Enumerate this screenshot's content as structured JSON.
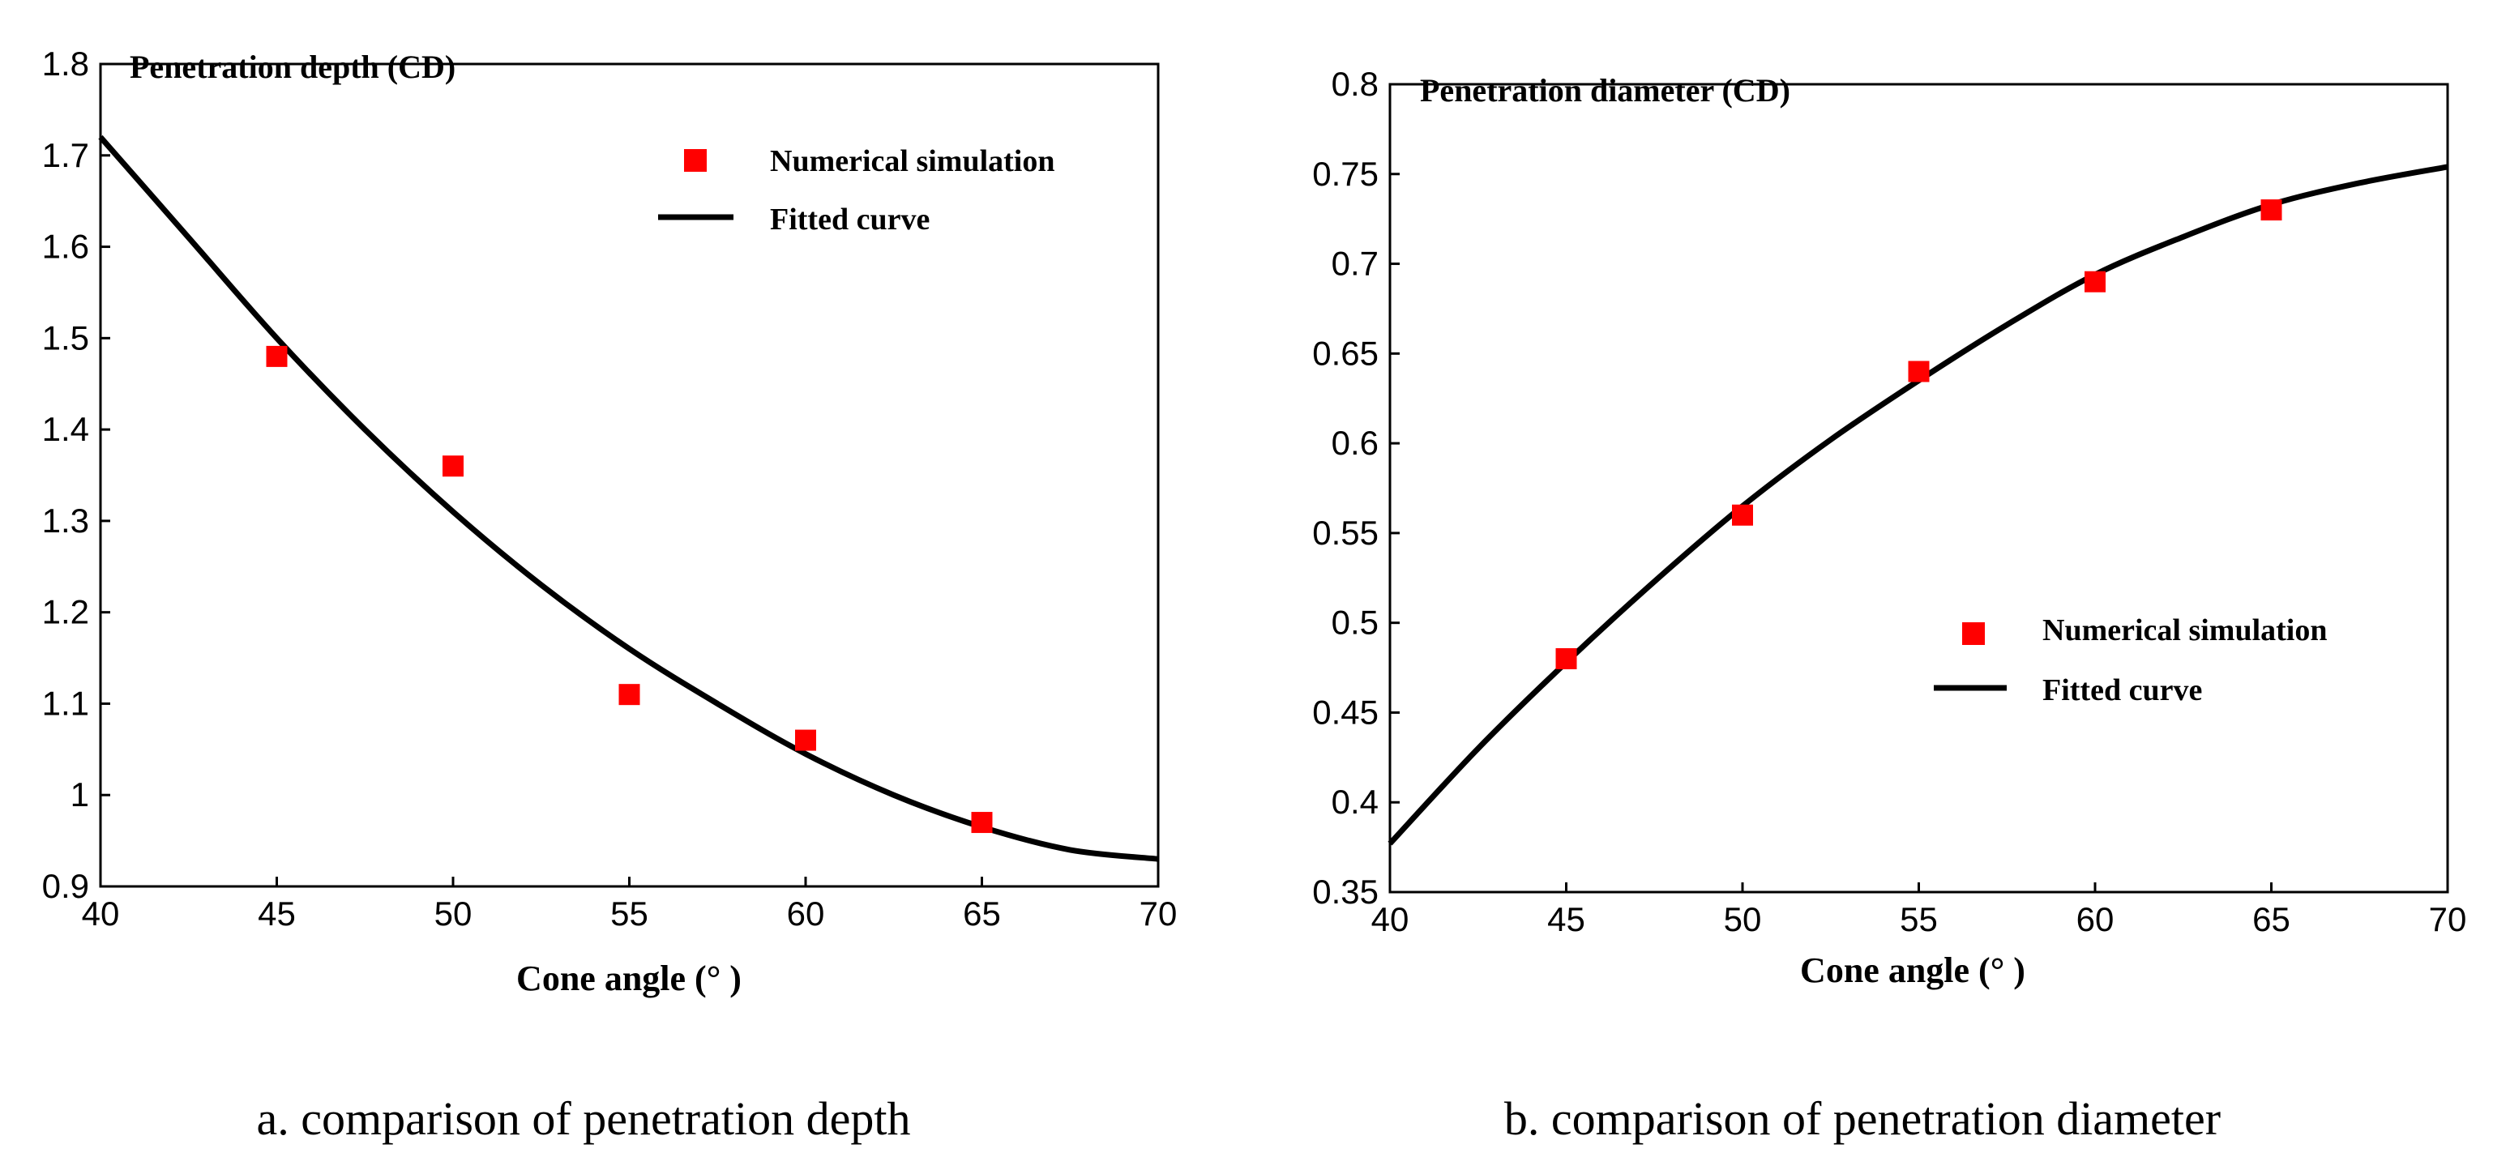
{
  "chart_data": [
    {
      "type": "scatter",
      "panel": "a",
      "title": "Penetration depth (CD)",
      "xlabel": "Cone angle (°  )",
      "ylabel": "",
      "xlim": [
        40,
        70
      ],
      "ylim": [
        0.9,
        1.8
      ],
      "xticks": [
        "40",
        "45",
        "50",
        "55",
        "60",
        "65",
        "70"
      ],
      "yticks": [
        "0.9",
        "1",
        "1.1",
        "1.2",
        "1.3",
        "1.4",
        "1.5",
        "1.6",
        "1.7",
        "1.8"
      ],
      "legend_position": "top-right",
      "series": [
        {
          "name": "Numerical simulation",
          "kind": "markers",
          "color": "#ff0000",
          "x": [
            45,
            50,
            55,
            60,
            65
          ],
          "y": [
            1.48,
            1.36,
            1.11,
            1.06,
            0.97
          ]
        },
        {
          "name": "Fitted curve",
          "kind": "line",
          "color": "#000000",
          "x": [
            40,
            42.5,
            45,
            47.5,
            50,
            52.5,
            55,
            57.5,
            60,
            62.5,
            65,
            67.5,
            70
          ],
          "y": [
            1.72,
            1.61,
            1.5,
            1.4,
            1.31,
            1.23,
            1.16,
            1.1,
            1.045,
            1.0,
            0.965,
            0.94,
            0.93
          ]
        }
      ],
      "caption": "a. comparison of penetration depth"
    },
    {
      "type": "scatter",
      "panel": "b",
      "title": "Penetration diameter (CD)",
      "xlabel": "Cone angle (°  )",
      "ylabel": "",
      "xlim": [
        40,
        70
      ],
      "ylim": [
        0.35,
        0.8
      ],
      "xticks": [
        "40",
        "45",
        "50",
        "55",
        "60",
        "65",
        "70"
      ],
      "yticks": [
        "0.35",
        "0.4",
        "0.45",
        "0.5",
        "0.55",
        "0.6",
        "0.65",
        "0.7",
        "0.75",
        "0.8"
      ],
      "legend_position": "center-right",
      "series": [
        {
          "name": "Numerical simulation",
          "kind": "markers",
          "color": "#ff0000",
          "x": [
            45,
            50,
            55,
            60,
            65
          ],
          "y": [
            0.48,
            0.56,
            0.64,
            0.69,
            0.73
          ]
        },
        {
          "name": "Fitted curve",
          "kind": "line",
          "color": "#000000",
          "x": [
            40,
            42.5,
            45,
            47.5,
            50,
            52.5,
            55,
            57.5,
            60,
            62.5,
            65,
            67.5,
            70
          ],
          "y": [
            0.377,
            0.43,
            0.478,
            0.523,
            0.565,
            0.602,
            0.635,
            0.666,
            0.694,
            0.715,
            0.733,
            0.745,
            0.754
          ]
        }
      ],
      "caption": "b. comparison of penetration diameter"
    }
  ]
}
